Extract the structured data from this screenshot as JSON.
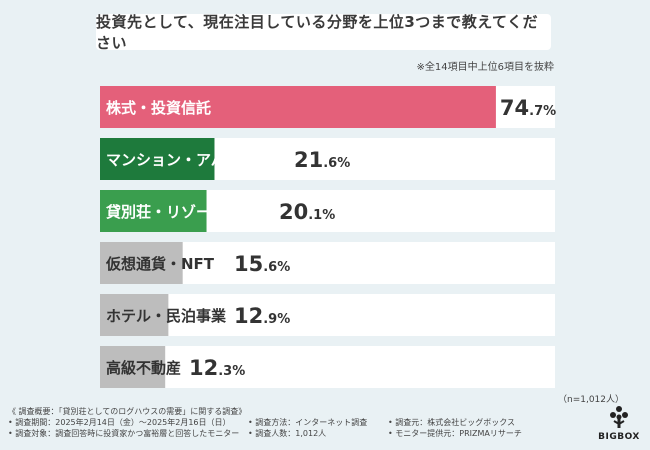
{
  "title": "投資先として、現在注目している分野を上位3つまで教えてください",
  "note": "※全14項目中上位6項目を抜粋",
  "n_label": "（n=1,012人）",
  "survey": {
    "overview": "《 調査概要：「貸別荘としてのログハウスの需要」に関する調査》",
    "period": "• 調査期間：2025年2月14日（金）～2025年2月16日（日）",
    "method": "• 調査方法：インターネット調査",
    "organizer": "• 調査元：株式会社ビッグボックス",
    "target": "• 調査対象：調査回答時に投資家かつ富裕層と回答したモニター",
    "respondents": "• 調査人数：1,012人",
    "provider": "• モニター提供元：PRIZMAリサーチ"
  },
  "logo": {
    "text": "BIGBOX",
    "icon": "tree-icon"
  },
  "colors": {
    "top": "#e4607a",
    "second": "#1e7a3c",
    "third": "#3a9e4e",
    "rest": "#bdbdbd",
    "track": "#ffffff"
  },
  "chart_data": {
    "type": "bar",
    "orientation": "horizontal",
    "unit": "%",
    "xlim": [
      0,
      100
    ],
    "categories": [
      "株式・投資信託",
      "マンション・アパート経営",
      "貸別荘・リゾート不動産",
      "仮想通貨・NFT",
      "ホテル・民泊事業",
      "高級不動産"
    ],
    "values": [
      74.7,
      21.6,
      20.1,
      15.6,
      12.9,
      12.3
    ]
  }
}
